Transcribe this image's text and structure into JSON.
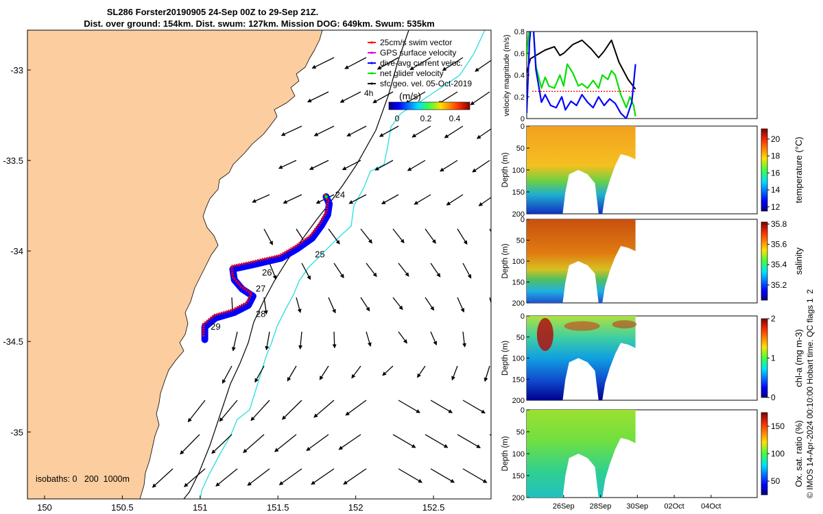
{
  "title": {
    "line1": "SL286 Forster20190905 24-Sep 00Z to 29-Sep 21Z.",
    "line2": "Dist. over ground: 154km. Dist. swum: 127km. Mission DOG: 649km. Swum: 535km"
  },
  "colors": {
    "land": "#fbcd9f",
    "track_swim": "#ff0000",
    "gps": "#e000e0",
    "dive_avg": "#0000ff",
    "net": "#00e000",
    "isobath_1000": "#33e0e0",
    "isobath_200": "#000000",
    "geo_arrows": "#000000"
  },
  "legend": {
    "items": [
      {
        "label": "25cm/s swim vector",
        "color": "#ff0000"
      },
      {
        "label": "GPS surface velocity",
        "color": "#e000e0"
      },
      {
        "label": "dive-avg current veloc.",
        "color": "#0000ff"
      },
      {
        "label": "net glider velocity",
        "color": "#00e000"
      },
      {
        "label": "sfc geo. vel. 05-Oct-2019",
        "color": "#000000"
      }
    ],
    "duration_label": "4h",
    "colorbar_title": "(m/s)",
    "colorbar_ticks": [
      "0",
      "0.2",
      "0.4"
    ]
  },
  "isobath_label": "isobaths: 0   200  1000m",
  "chart_data": [
    {
      "type": "map",
      "name": "track-map",
      "x_ticks": [
        "150",
        "150.5",
        "151",
        "151.5",
        "152",
        "152.5"
      ],
      "x_tick_values": [
        150,
        150.5,
        151,
        151.5,
        152,
        152.5
      ],
      "y_ticks": [
        "-33",
        "-33.5",
        "-34",
        "-34.5",
        "-35"
      ],
      "y_tick_values": [
        -33,
        -33.5,
        -34,
        -34.5,
        -35
      ],
      "xlim": [
        149.89,
        152.87
      ],
      "ylim": [
        -35.37,
        -32.78
      ],
      "day_labels": [
        {
          "label": "24",
          "lon": 151.85,
          "lat": -33.69
        },
        {
          "label": "25",
          "lon": 151.72,
          "lat": -34.02
        },
        {
          "label": "26",
          "lon": 151.38,
          "lat": -34.12
        },
        {
          "label": "27",
          "lon": 151.34,
          "lat": -34.21
        },
        {
          "label": "28",
          "lon": 151.34,
          "lat": -34.35
        },
        {
          "label": "29",
          "lon": 151.05,
          "lat": -34.42
        }
      ],
      "track": [
        [
          151.81,
          -33.7
        ],
        [
          151.83,
          -33.74
        ],
        [
          151.82,
          -33.8
        ],
        [
          151.78,
          -33.86
        ],
        [
          151.72,
          -33.93
        ],
        [
          151.62,
          -33.99
        ],
        [
          151.52,
          -34.04
        ],
        [
          151.42,
          -34.06
        ],
        [
          151.32,
          -34.08
        ],
        [
          151.21,
          -34.1
        ],
        [
          151.22,
          -34.16
        ],
        [
          151.27,
          -34.21
        ],
        [
          151.34,
          -34.25
        ],
        [
          151.31,
          -34.3
        ],
        [
          151.22,
          -34.34
        ],
        [
          151.1,
          -34.37
        ],
        [
          151.03,
          -34.42
        ],
        [
          151.03,
          -34.49
        ]
      ]
    },
    {
      "type": "line",
      "name": "velocity-magnitude",
      "ylabel": "velocity magnitude (m/s)",
      "ylim": [
        0,
        0.8
      ],
      "y_ticks": [
        0,
        0.2,
        0.4,
        0.6,
        0.8
      ],
      "x_domain_days": [
        24,
        36.5
      ],
      "series": [
        {
          "name": "sfc geo. vel. 05-Oct-2019",
          "color": "#000000",
          "x": [
            24.0,
            24.2,
            24.5,
            25.0,
            25.5,
            25.8,
            26.0,
            26.5,
            27.0,
            27.5,
            27.9,
            28.2,
            28.6,
            29.0,
            29.5,
            29.9
          ],
          "y": [
            0.42,
            0.55,
            0.58,
            0.63,
            0.66,
            0.58,
            0.6,
            0.68,
            0.72,
            0.64,
            0.56,
            0.62,
            0.72,
            0.52,
            0.36,
            0.27
          ]
        },
        {
          "name": "net glider velocity",
          "color": "#00e000",
          "x": [
            24.0,
            24.15,
            24.3,
            24.5,
            24.8,
            25.0,
            25.2,
            25.5,
            25.8,
            26.0,
            26.2,
            26.5,
            26.8,
            27.0,
            27.3,
            27.6,
            27.9,
            28.1,
            28.4,
            28.6,
            28.8,
            29.1,
            29.4,
            29.6,
            29.8,
            29.9
          ],
          "y": [
            0.55,
            0.9,
            1.0,
            0.48,
            0.28,
            0.38,
            0.3,
            0.28,
            0.4,
            0.3,
            0.5,
            0.42,
            0.3,
            0.32,
            0.28,
            0.35,
            0.28,
            0.4,
            0.36,
            0.44,
            0.4,
            0.22,
            0.1,
            0.2,
            0.12,
            0.02
          ]
        },
        {
          "name": "dive-avg current veloc.",
          "color": "#0000ff",
          "x": [
            24.0,
            24.15,
            24.3,
            24.5,
            24.8,
            25.0,
            25.3,
            25.6,
            25.9,
            26.1,
            26.4,
            26.7,
            27.0,
            27.3,
            27.6,
            27.9,
            28.2,
            28.5,
            28.8,
            29.1,
            29.4,
            29.7,
            29.9
          ],
          "y": [
            0.05,
            0.7,
            1.0,
            0.45,
            0.15,
            0.22,
            0.12,
            0.1,
            0.2,
            0.08,
            0.16,
            0.12,
            0.22,
            0.15,
            0.1,
            0.2,
            0.12,
            0.18,
            0.14,
            0.05,
            0.0,
            0.15,
            0.5
          ]
        },
        {
          "name": "25cm/s swim vector",
          "color": "#ff0000",
          "x": [
            24.3,
            29.9
          ],
          "y": [
            0.25,
            0.25
          ]
        }
      ]
    },
    {
      "type": "heatmap",
      "name": "temperature",
      "ylabel": "Depth (m)",
      "cbar_label": "temperature (°C)",
      "cbar_ticks": [
        "12",
        "14",
        "16",
        "18",
        "20"
      ],
      "clim": [
        11.5,
        21.2
      ],
      "ylim": [
        200,
        0
      ],
      "y_ticks": [
        0,
        50,
        100,
        150,
        200
      ]
    },
    {
      "type": "heatmap",
      "name": "salinity",
      "ylabel": "Depth (m)",
      "cbar_label": "salinity",
      "cbar_ticks": [
        "35.2",
        "35.4",
        "35.6",
        "35.8"
      ],
      "clim": [
        35.05,
        35.82
      ],
      "ylim": [
        200,
        0
      ],
      "y_ticks": [
        0,
        50,
        100,
        150,
        200
      ]
    },
    {
      "type": "heatmap",
      "name": "chlorophyll",
      "ylabel": "Depth (m)",
      "cbar_label": "chl-a (mg m-3)",
      "cbar_ticks": [
        "0",
        "1",
        "2"
      ],
      "clim": [
        0,
        2
      ],
      "ylim": [
        200,
        0
      ],
      "y_ticks": [
        0,
        50,
        100,
        150,
        200
      ]
    },
    {
      "type": "heatmap",
      "name": "oxygen",
      "ylabel": "Depth (m)",
      "cbar_label": "Ox. sat. ratio (%)",
      "cbar_ticks": [
        "50",
        "100",
        "150"
      ],
      "clim": [
        25,
        175
      ],
      "ylim": [
        200,
        0
      ],
      "y_ticks": [
        0,
        50,
        100,
        150,
        200
      ]
    }
  ],
  "time_axis": {
    "ticks": [
      "26Sep",
      "28Sep",
      "30Sep",
      "02Oct",
      "04Oct"
    ],
    "tick_days": [
      26,
      28,
      30,
      32,
      34
    ]
  },
  "side_note": "© IMOS 14-Apr-2024 00:10:00 Hobart time. QC flags 1  2"
}
